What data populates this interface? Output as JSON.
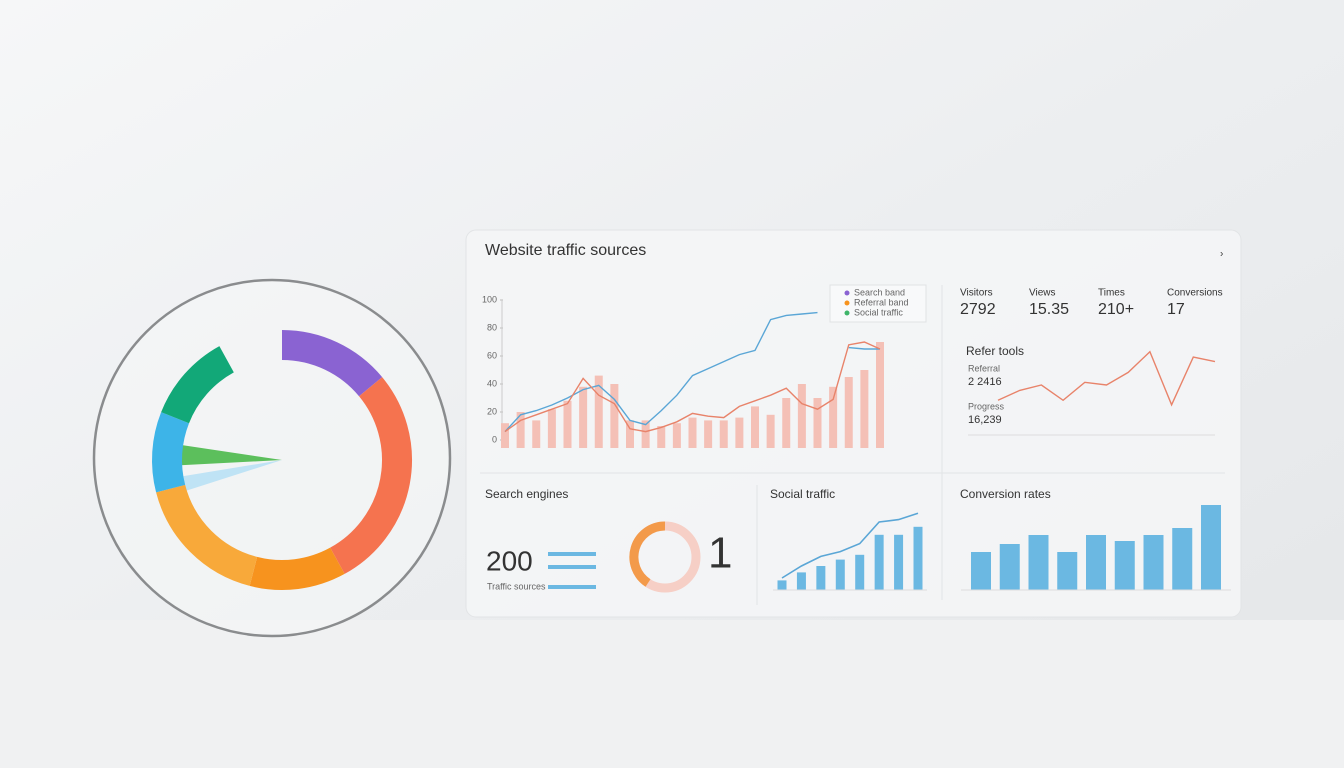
{
  "header": {
    "title": "Website traffic sources"
  },
  "donut": {
    "type": "pie",
    "values": [
      14,
      28,
      12,
      17,
      10,
      11
    ],
    "colors": [
      "#8a63d2",
      "#f5734f",
      "#f7931e",
      "#f8a93a",
      "#3db4e8",
      "#12a878"
    ]
  },
  "traffic_chart": {
    "type": "bar",
    "ylim": [
      0,
      100
    ],
    "yticks": [
      0,
      20,
      40,
      60,
      80,
      100
    ],
    "bar_color": "#f4c0b6",
    "values": [
      12,
      20,
      14,
      22,
      28,
      38,
      46,
      40,
      14,
      14,
      10,
      12,
      16,
      14,
      14,
      16,
      24,
      18,
      30,
      40,
      30,
      38,
      45,
      50,
      70
    ],
    "legend": [
      {
        "name": "Search band",
        "color": "#8a63d2"
      },
      {
        "name": "Referral band",
        "color": "#f7931e"
      },
      {
        "name": "Social traffic",
        "color": "#3fb56a"
      }
    ],
    "series": [
      {
        "color": "#5aa6d6",
        "values": [
          6,
          18,
          21,
          25,
          30,
          36,
          39,
          29,
          14,
          11,
          21,
          32,
          46,
          51,
          56,
          61,
          64,
          86,
          89,
          90,
          91,
          null,
          66,
          65,
          65
        ]
      },
      {
        "color": "#e8836a",
        "values": [
          6,
          14,
          18,
          22,
          26,
          44,
          32,
          26,
          8,
          6,
          9,
          13,
          19,
          17,
          16,
          24,
          28,
          32,
          37,
          26,
          22,
          29,
          68,
          70,
          65
        ]
      }
    ]
  },
  "stats": [
    {
      "label": "Visitors",
      "value": "2792"
    },
    {
      "label": "Views",
      "value": "15.35"
    },
    {
      "label": "Times",
      "value": "210+"
    },
    {
      "label": "Conversions",
      "value": "17"
    }
  ],
  "referral": {
    "type": "line",
    "title": "Refer tools",
    "color": "#e8836a",
    "ylim": [
      0,
      100
    ],
    "items": [
      {
        "label": "Referral",
        "value": "2 2416"
      },
      {
        "label": "Progress",
        "value": "16,239"
      }
    ],
    "values": [
      33,
      44,
      50,
      33,
      53,
      50,
      64,
      87,
      28,
      81,
      76
    ]
  },
  "search": {
    "title": "Search engines",
    "value": "200",
    "caption": "Traffic sources",
    "ring_text": "1"
  },
  "social": {
    "type": "bar",
    "title": "Social traffic",
    "color": "#6bb8e2",
    "line_color": "#5aa6d6",
    "ylim": [
      0,
      100
    ],
    "values": [
      12,
      22,
      30,
      38,
      44,
      69,
      69,
      79
    ],
    "line": [
      15,
      30,
      42,
      48,
      58,
      85,
      88,
      96
    ]
  },
  "conversions": {
    "type": "bar",
    "title": "Conversion rates",
    "color": "#6bb8e2",
    "ylim": [
      0,
      100
    ],
    "values": [
      38,
      46,
      55,
      38,
      55,
      49,
      55,
      62,
      85
    ]
  }
}
